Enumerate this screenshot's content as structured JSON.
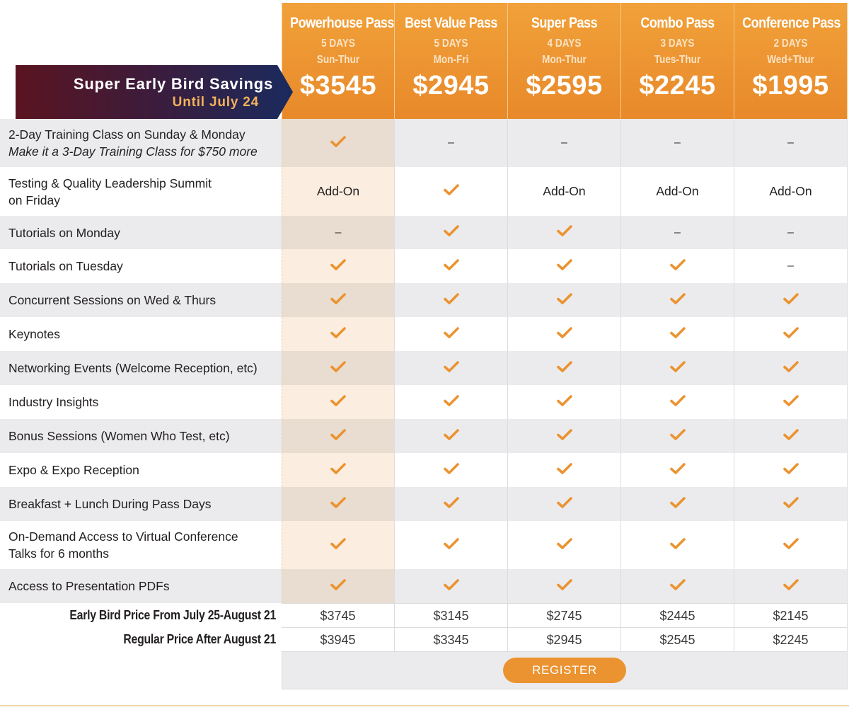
{
  "banner": {
    "title": "Super Early Bird Savings",
    "subtitle": "Until July 24",
    "colors": {
      "start": "#4a1a2e",
      "end": "#1c2a5c"
    }
  },
  "passes": [
    {
      "name": "Powerhouse Pass",
      "days": "5 DAYS",
      "range": "Sun-Thur",
      "price": "$3545",
      "early": "$3745",
      "regular": "$3945"
    },
    {
      "name": "Best Value Pass",
      "days": "5 DAYS",
      "range": "Mon-Fri",
      "price": "$2945",
      "early": "$3145",
      "regular": "$3345"
    },
    {
      "name": "Super Pass",
      "days": "4 DAYS",
      "range": "Mon-Thur",
      "price": "$2595",
      "early": "$2745",
      "regular": "$2945"
    },
    {
      "name": "Combo Pass",
      "days": "3 DAYS",
      "range": "Tues-Thur",
      "price": "$2245",
      "early": "$2445",
      "regular": "$2545"
    },
    {
      "name": "Conference Pass",
      "days": "2 DAYS",
      "range": "Wed+Thur",
      "price": "$1995",
      "early": "$2145",
      "regular": "$2245"
    }
  ],
  "features": [
    {
      "label": "2-Day Training Class on Sunday & Monday",
      "sub": "Make it a 3-Day Training Class for $750 more",
      "values": [
        "check",
        "–",
        "–",
        "–",
        "–"
      ]
    },
    {
      "label": "Testing & Quality Leadership Summit",
      "label2": "on Friday",
      "values": [
        "Add-On",
        "check",
        "Add-On",
        "Add-On",
        "Add-On"
      ]
    },
    {
      "label": "Tutorials on Monday",
      "values": [
        "–",
        "check",
        "check",
        "–",
        "–"
      ]
    },
    {
      "label": "Tutorials on Tuesday",
      "values": [
        "check",
        "check",
        "check",
        "check",
        "–"
      ]
    },
    {
      "label": "Concurrent Sessions on Wed & Thurs",
      "values": [
        "check",
        "check",
        "check",
        "check",
        "check"
      ]
    },
    {
      "label": "Keynotes",
      "values": [
        "check",
        "check",
        "check",
        "check",
        "check"
      ]
    },
    {
      "label": "Networking Events (Welcome Reception, etc)",
      "values": [
        "check",
        "check",
        "check",
        "check",
        "check"
      ]
    },
    {
      "label": "Industry Insights",
      "values": [
        "check",
        "check",
        "check",
        "check",
        "check"
      ]
    },
    {
      "label": "Bonus Sessions (Women Who Test, etc)",
      "values": [
        "check",
        "check",
        "check",
        "check",
        "check"
      ]
    },
    {
      "label": "Expo & Expo Reception",
      "values": [
        "check",
        "check",
        "check",
        "check",
        "check"
      ]
    },
    {
      "label": "Breakfast + Lunch During Pass Days",
      "values": [
        "check",
        "check",
        "check",
        "check",
        "check"
      ]
    },
    {
      "label": "On-Demand Access to Virtual Conference",
      "label2": "Talks for 6 months",
      "values": [
        "check",
        "check",
        "check",
        "check",
        "check"
      ]
    },
    {
      "label": "Access to Presentation PDFs",
      "values": [
        "check",
        "check",
        "check",
        "check",
        "check"
      ]
    }
  ],
  "price_rows": {
    "early_label": "Early Bird Price From July 25-August 21",
    "regular_label": "Regular Price After August 21"
  },
  "register_label": "REGISTER",
  "colors": {
    "accent": "#e8892a",
    "check": "#eb9330",
    "highlight": "#fbeee0",
    "shade": "#ebebed"
  },
  "icons": {
    "check": "check-icon"
  }
}
